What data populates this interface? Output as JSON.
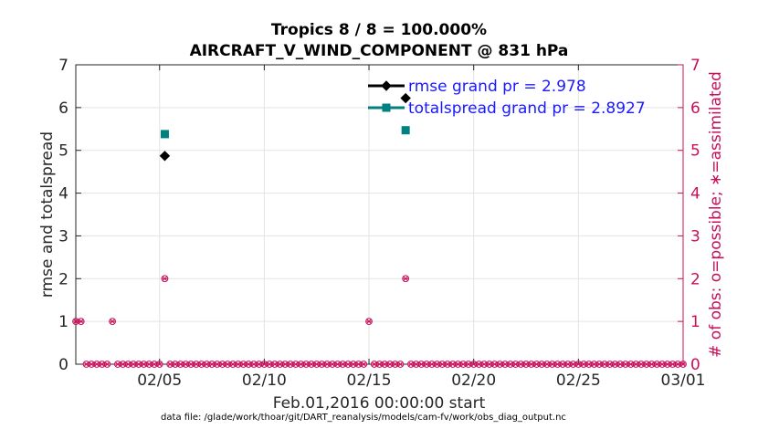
{
  "chart_data": {
    "type": "scatter",
    "title": [
      "Tropics 8 / 8 = 100.000%",
      "AIRCRAFT_V_WIND_COMPONENT @ 831 hPa"
    ],
    "xlabel": "Feb.01,2016 00:00:00 start",
    "ylabel_left": "rmse and totalspread",
    "ylabel_right": "# of obs: o=possible; ∗=assimilated",
    "footer": "data file: /glade/work/thoar/git/DART_reanalysis/models/cam-fv/work/obs_diag_output.nc",
    "xlim": [
      1,
      30
    ],
    "xticks": [
      5,
      10,
      15,
      20,
      25,
      30
    ],
    "xtick_labels": [
      "02/05",
      "02/10",
      "02/15",
      "02/20",
      "02/25",
      "03/01"
    ],
    "ylim_left": [
      0,
      7
    ],
    "ylim_right": [
      0,
      7
    ],
    "yticks": [
      0,
      1,
      2,
      3,
      4,
      5,
      6,
      7
    ],
    "grid": true,
    "legend_position": "top-right",
    "series": [
      {
        "name": "rmse grand pr = 2.978",
        "color": "#000000",
        "marker": "diamond",
        "axis": "left",
        "points": [
          [
            5.25,
            4.87
          ],
          [
            16.75,
            6.22
          ]
        ]
      },
      {
        "name": "totalspread grand pr = 2.8927",
        "color": "#008080",
        "marker": "square",
        "axis": "left",
        "points": [
          [
            5.25,
            5.38
          ],
          [
            16.75,
            5.47
          ]
        ]
      },
      {
        "name": "obs possible / assimilated",
        "color": "#c8105a",
        "marker": "o-and-asterisk",
        "axis": "right",
        "points": [
          [
            1,
            1
          ],
          [
            1.25,
            1
          ],
          [
            1.5,
            0
          ],
          [
            1.75,
            0
          ],
          [
            2,
            0
          ],
          [
            2.25,
            0
          ],
          [
            2.5,
            0
          ],
          [
            2.75,
            1
          ],
          [
            3,
            0
          ],
          [
            3.25,
            0
          ],
          [
            3.5,
            0
          ],
          [
            3.75,
            0
          ],
          [
            4,
            0
          ],
          [
            4.25,
            0
          ],
          [
            4.5,
            0
          ],
          [
            4.75,
            0
          ],
          [
            5,
            0
          ],
          [
            5.25,
            2
          ],
          [
            5.5,
            0
          ],
          [
            5.75,
            0
          ],
          [
            6,
            0
          ],
          [
            6.25,
            0
          ],
          [
            6.5,
            0
          ],
          [
            6.75,
            0
          ],
          [
            7,
            0
          ],
          [
            7.25,
            0
          ],
          [
            7.5,
            0
          ],
          [
            7.75,
            0
          ],
          [
            8,
            0
          ],
          [
            8.25,
            0
          ],
          [
            8.5,
            0
          ],
          [
            8.75,
            0
          ],
          [
            9,
            0
          ],
          [
            9.25,
            0
          ],
          [
            9.5,
            0
          ],
          [
            9.75,
            0
          ],
          [
            10,
            0
          ],
          [
            10.25,
            0
          ],
          [
            10.5,
            0
          ],
          [
            10.75,
            0
          ],
          [
            11,
            0
          ],
          [
            11.25,
            0
          ],
          [
            11.5,
            0
          ],
          [
            11.75,
            0
          ],
          [
            12,
            0
          ],
          [
            12.25,
            0
          ],
          [
            12.5,
            0
          ],
          [
            12.75,
            0
          ],
          [
            13,
            0
          ],
          [
            13.25,
            0
          ],
          [
            13.5,
            0
          ],
          [
            13.75,
            0
          ],
          [
            14,
            0
          ],
          [
            14.25,
            0
          ],
          [
            14.5,
            0
          ],
          [
            14.75,
            0
          ],
          [
            15,
            1
          ],
          [
            15.25,
            0
          ],
          [
            15.5,
            0
          ],
          [
            15.75,
            0
          ],
          [
            16,
            0
          ],
          [
            16.25,
            0
          ],
          [
            16.5,
            0
          ],
          [
            16.75,
            2
          ],
          [
            17,
            0
          ],
          [
            17.25,
            0
          ],
          [
            17.5,
            0
          ],
          [
            17.75,
            0
          ],
          [
            18,
            0
          ],
          [
            18.25,
            0
          ],
          [
            18.5,
            0
          ],
          [
            18.75,
            0
          ],
          [
            19,
            0
          ],
          [
            19.25,
            0
          ],
          [
            19.5,
            0
          ],
          [
            19.75,
            0
          ],
          [
            20,
            0
          ],
          [
            20.25,
            0
          ],
          [
            20.5,
            0
          ],
          [
            20.75,
            0
          ],
          [
            21,
            0
          ],
          [
            21.25,
            0
          ],
          [
            21.5,
            0
          ],
          [
            21.75,
            0
          ],
          [
            22,
            0
          ],
          [
            22.25,
            0
          ],
          [
            22.5,
            0
          ],
          [
            22.75,
            0
          ],
          [
            23,
            0
          ],
          [
            23.25,
            0
          ],
          [
            23.5,
            0
          ],
          [
            23.75,
            0
          ],
          [
            24,
            0
          ],
          [
            24.25,
            0
          ],
          [
            24.5,
            0
          ],
          [
            24.75,
            0
          ],
          [
            25,
            0
          ],
          [
            25.25,
            0
          ],
          [
            25.5,
            0
          ],
          [
            25.75,
            0
          ],
          [
            26,
            0
          ],
          [
            26.25,
            0
          ],
          [
            26.5,
            0
          ],
          [
            26.75,
            0
          ],
          [
            27,
            0
          ],
          [
            27.25,
            0
          ],
          [
            27.5,
            0
          ],
          [
            27.75,
            0
          ],
          [
            28,
            0
          ],
          [
            28.25,
            0
          ],
          [
            28.5,
            0
          ],
          [
            28.75,
            0
          ],
          [
            29,
            0
          ],
          [
            29.25,
            0
          ],
          [
            29.5,
            0
          ],
          [
            29.75,
            0
          ],
          [
            30,
            0
          ]
        ]
      }
    ]
  }
}
